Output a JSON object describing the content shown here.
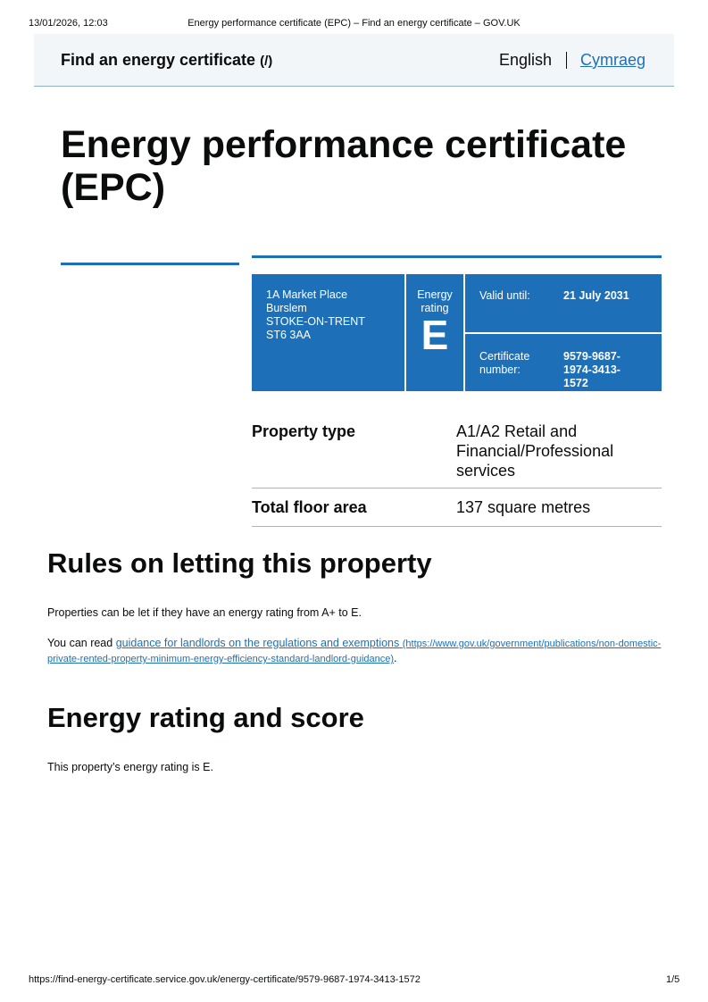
{
  "print": {
    "datetime": "13/01/2026, 12:03",
    "doc_title": "Energy performance certificate (EPC) – Find an energy certificate – GOV.UK",
    "url": "https://find-energy-certificate.service.gov.uk/energy-certificate/9579-9687-1974-3413-1572",
    "page": "1/5"
  },
  "header": {
    "service_name": "Find an energy certificate",
    "service_link": "(/)",
    "lang_current": "English",
    "lang_other": "Cymraeg"
  },
  "page_title": "Energy performance certificate (EPC)",
  "summary": {
    "address": [
      "1A Market Place",
      "Burslem",
      "STOKE-ON-TRENT",
      "ST6 3AA"
    ],
    "rating_label": "Energy rating",
    "rating": "E",
    "valid_label": "Valid until:",
    "valid_value": "21 July 2031",
    "cert_label": "Certificate number:",
    "cert_value": "9579-9687-1974-3413-1572"
  },
  "details": [
    {
      "key": "Property type",
      "value": "A1/A2 Retail and Financial/Professional services"
    },
    {
      "key": "Total floor area",
      "value": "137 square metres"
    }
  ],
  "rules": {
    "heading": "Rules on letting this property",
    "p1": "Properties can be let if they have an energy rating from A+ to E.",
    "p2_prefix": "You can read ",
    "link_text": "guidance for landlords on the regulations and exemptions",
    "link_url": "(https://www.gov.uk/government/publications/non-domestic-private-rented-property-minimum-energy-efficiency-standard-landlord-guidance)",
    "p2_suffix": "."
  },
  "rating_section": {
    "heading": "Energy rating and score",
    "p1": "This property’s energy rating is E."
  },
  "colors": {
    "brand_blue": "#1d70b8"
  }
}
